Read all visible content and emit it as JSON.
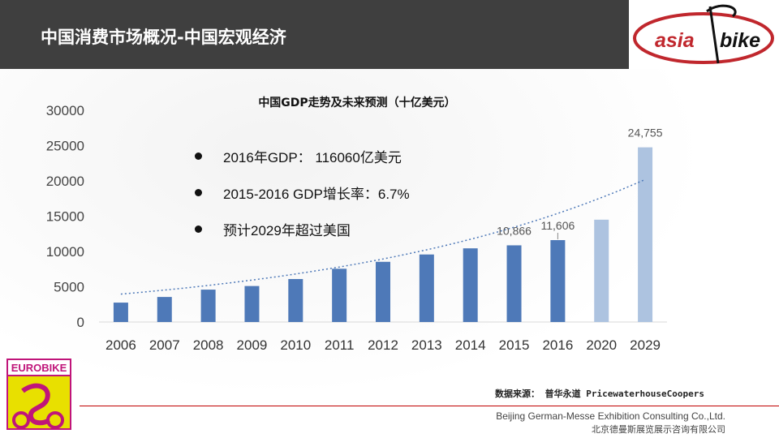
{
  "header": {
    "title": "中国消费市场概况-中国宏观经济"
  },
  "logo": {
    "text_left": "asia",
    "text_right": "bike",
    "color": "#c0272d"
  },
  "bullets": [
    "2016年GDP： 116060亿美元",
    "2015-2016 GDP增长率：6.7%",
    "预计2029年超过美国"
  ],
  "chart_data": {
    "type": "bar",
    "title": "中国GDP走势及未来预测（十亿美元）",
    "categories": [
      "2006",
      "2007",
      "2008",
      "2009",
      "2010",
      "2011",
      "2012",
      "2013",
      "2014",
      "2015",
      "2016",
      "2020",
      "2029"
    ],
    "values": [
      2750,
      3550,
      4590,
      5100,
      6090,
      7550,
      8530,
      9570,
      10440,
      10866,
      11606,
      14500,
      24755
    ],
    "forecast": [
      false,
      false,
      false,
      false,
      false,
      false,
      false,
      false,
      false,
      false,
      false,
      true,
      true
    ],
    "data_labels": {
      "9": "10,866",
      "10": "11,606",
      "12": "24,755"
    },
    "ylim": [
      0,
      30000
    ],
    "yticks": [
      "0",
      "5000",
      "10000",
      "15000",
      "20000",
      "25000",
      "30000"
    ],
    "trendline": "exponential dotted",
    "colors": {
      "actual": "#4e79b8",
      "forecast": "#adc3e0",
      "trend": "#4e79b8"
    }
  },
  "source": {
    "label": "数据来源：",
    "value": "普华永道 PricewaterhouseCoopers"
  },
  "footer": {
    "company_en": "Beijing German-Messe Exhibition Consulting Co.,Ltd.",
    "company_cn": "北京德曼斯展览展示咨询有限公司"
  },
  "eurobike": {
    "text": "EUROBIKE"
  }
}
